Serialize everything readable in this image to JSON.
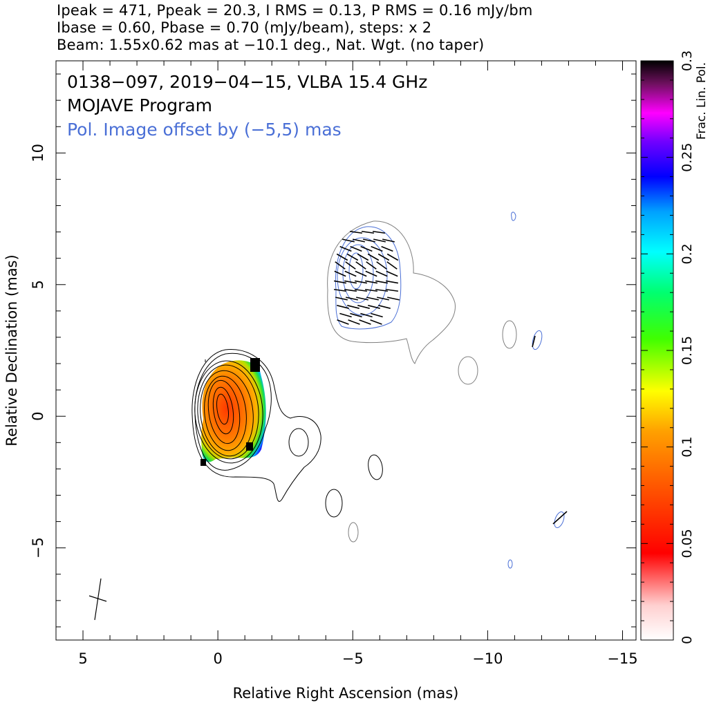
{
  "header": {
    "line1": "Ipeak = 471, Ppeak = 20.3, I RMS = 0.13, P RMS = 0.16 mJy/bm",
    "line2": "Ibase = 0.60, Pbase = 0.70 (mJy/beam), steps: x 2",
    "line3": "Beam: 1.55x0.62 mas at −10.1 deg., Nat. Wgt. (no taper)"
  },
  "annotations": {
    "source_line": "0138−097, 2019−04−15, VLBA 15.4 GHz",
    "program_line": "MOJAVE Program",
    "pol_offset_line": "Pol. Image offset by (−5,5) mas"
  },
  "colors": {
    "stokes_i_contour": "#000000",
    "pol_contour": "#4a6fd6",
    "grey_contour": "#7f7f7f",
    "pol_text": "#4a6fd6"
  },
  "chart_data": {
    "type": "heatmap",
    "xlabel": "Relative Right Ascension (mas)",
    "ylabel": "Relative Declination (mas)",
    "xlim": [
      6.0,
      -15.5
    ],
    "ylim": [
      -8.5,
      13.5
    ],
    "x_ticks": [
      5,
      0,
      -5,
      -10,
      -15
    ],
    "x_tick_labels": [
      "5",
      "0",
      "−5",
      "−10",
      "−15"
    ],
    "y_ticks": [
      -5,
      0,
      5,
      10
    ],
    "y_tick_labels": [
      "−5",
      "0",
      "5",
      "10"
    ],
    "colorbar": {
      "label": "Frac. Lin. Pol.",
      "range": [
        0,
        0.3
      ],
      "ticks": [
        0,
        0.05,
        0.1,
        0.15,
        0.2,
        0.25,
        0.3
      ],
      "tick_labels": [
        "0",
        "0.05",
        "0.1",
        "0.15",
        "0.2",
        "0.25",
        "0.3"
      ]
    },
    "beam": {
      "major_mas": 1.55,
      "minor_mas": 0.62,
      "pa_deg": -10.1
    },
    "core": {
      "x": 0,
      "y": 0
    },
    "pol_offset": {
      "x": -5,
      "y": 5
    }
  }
}
